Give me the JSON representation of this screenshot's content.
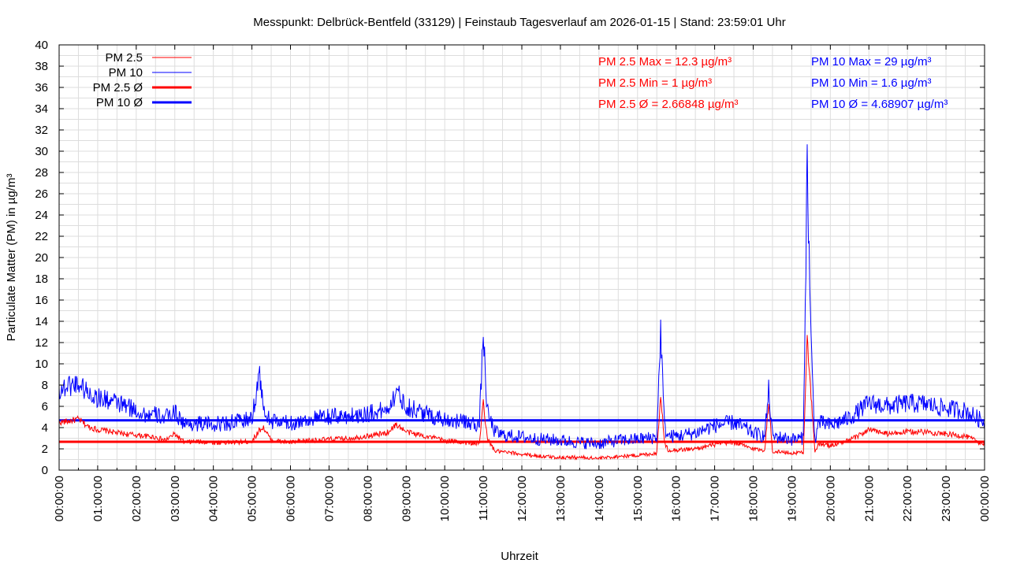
{
  "chart_data": {
    "type": "line",
    "title": "Messpunkt: Delbrück-Bentfeld (33129) | Feinstaub Tagesverlauf am 2026-01-15 | Stand: 23:59:01 Uhr",
    "xlabel": "Uhrzeit",
    "ylabel": "Particulate Matter (PM) in µg/m³",
    "xlim": [
      "00:00:00",
      "24:00:00"
    ],
    "ylim": [
      0,
      40
    ],
    "grid": true,
    "legend": "top-left",
    "x_ticks": [
      "00:00:00",
      "01:00:00",
      "02:00:00",
      "03:00:00",
      "04:00:00",
      "05:00:00",
      "06:00:00",
      "07:00:00",
      "08:00:00",
      "09:00:00",
      "10:00:00",
      "11:00:00",
      "12:00:00",
      "13:00:00",
      "14:00:00",
      "15:00:00",
      "16:00:00",
      "17:00:00",
      "18:00:00",
      "19:00:00",
      "20:00:00",
      "21:00:00",
      "22:00:00",
      "23:00:00",
      "00:00:00"
    ],
    "y_ticks": [
      0,
      2,
      4,
      6,
      8,
      10,
      12,
      14,
      16,
      18,
      20,
      22,
      24,
      26,
      28,
      30,
      32,
      34,
      36,
      38,
      40
    ],
    "x_unit": "hours",
    "series": [
      {
        "name": "PM 2.5",
        "color": "#ff0000",
        "x": [
          0,
          0.25,
          0.5,
          0.75,
          1,
          1.25,
          1.5,
          1.75,
          2,
          2.25,
          2.5,
          2.75,
          3,
          3.25,
          3.5,
          4,
          4.5,
          5,
          5.2,
          5.3,
          5.5,
          6,
          6.5,
          7,
          7.5,
          8,
          8.5,
          8.75,
          9,
          9.5,
          10,
          10.5,
          10.9,
          11,
          11.1,
          11.3,
          11.5,
          12,
          12.5,
          13,
          13.5,
          14,
          14.5,
          15,
          15.5,
          15.6,
          15.7,
          15.8,
          16,
          16.5,
          17,
          17.5,
          18,
          18.3,
          18.4,
          18.5,
          19,
          19.3,
          19.4,
          19.5,
          19.6,
          19.7,
          20,
          20.5,
          21,
          21.5,
          22,
          22.5,
          23,
          23.5,
          24
        ],
        "y": [
          4.5,
          4.6,
          4.8,
          4.1,
          3.8,
          3.7,
          3.5,
          3.4,
          3.3,
          3.2,
          3.1,
          2.8,
          3.4,
          2.6,
          2.7,
          2.6,
          2.6,
          2.7,
          3.8,
          4.0,
          2.8,
          2.6,
          2.8,
          2.9,
          3.0,
          3.2,
          3.5,
          4.3,
          3.6,
          3.2,
          2.8,
          2.6,
          2.5,
          6.5,
          3.0,
          1.8,
          1.7,
          1.5,
          1.3,
          1.2,
          1.2,
          1.1,
          1.3,
          1.4,
          1.6,
          7.2,
          2.5,
          1.9,
          1.9,
          2.0,
          2.4,
          2.6,
          2.0,
          1.9,
          6.4,
          1.8,
          1.6,
          1.7,
          12.3,
          7.0,
          1.6,
          2.5,
          2.3,
          2.8,
          3.8,
          3.4,
          3.6,
          3.6,
          3.4,
          3.2,
          2.4
        ]
      },
      {
        "name": "PM 10",
        "color": "#0000ff",
        "x": [
          0,
          0.25,
          0.5,
          0.75,
          1,
          1.25,
          1.5,
          1.75,
          2,
          2.25,
          2.5,
          2.75,
          3,
          3.25,
          3.5,
          4,
          4.5,
          5,
          5.2,
          5.3,
          5.5,
          6,
          6.5,
          7,
          7.5,
          8,
          8.5,
          8.75,
          9,
          9.5,
          10,
          10.5,
          10.9,
          11,
          11.1,
          11.3,
          11.5,
          12,
          12.5,
          13,
          13.5,
          14,
          14.5,
          15,
          15.5,
          15.6,
          15.7,
          15.8,
          16,
          16.5,
          17,
          17.5,
          18,
          18.3,
          18.4,
          18.5,
          19,
          19.3,
          19.4,
          19.5,
          19.6,
          19.7,
          20,
          20.5,
          21,
          21.5,
          22,
          22.5,
          23,
          23.5,
          24
        ],
        "y": [
          7.5,
          8.0,
          8.2,
          7.3,
          6.8,
          6.6,
          6.3,
          6.0,
          5.6,
          5.2,
          5.2,
          4.9,
          5.5,
          4.3,
          4.4,
          4.3,
          4.5,
          4.8,
          9.2,
          5.5,
          4.6,
          4.4,
          4.8,
          5.0,
          5.1,
          5.3,
          5.7,
          7.4,
          6.0,
          5.3,
          4.8,
          4.5,
          4.3,
          13.0,
          5.5,
          3.6,
          3.3,
          3.1,
          2.9,
          2.8,
          2.6,
          2.5,
          2.8,
          2.9,
          3.1,
          13.3,
          4.0,
          3.2,
          3.2,
          3.5,
          4.2,
          4.5,
          3.5,
          3.2,
          7.5,
          3.2,
          2.9,
          3.0,
          29.0,
          12.0,
          2.8,
          4.5,
          4.2,
          4.9,
          6.3,
          6.0,
          6.3,
          6.2,
          5.8,
          5.6,
          4.5
        ]
      },
      {
        "name": "PM 2.5 Ø",
        "color": "#ff0000",
        "value": 2.66848
      },
      {
        "name": "PM 10 Ø",
        "color": "#0000ff",
        "value": 4.68907
      }
    ],
    "annotations": [
      {
        "text": "PM 2.5 Max = 12.3 µg/m³",
        "color": "#ff0000"
      },
      {
        "text": "PM 2.5 Min = 1 µg/m³",
        "color": "#ff0000"
      },
      {
        "text": "PM 2.5 Ø = 2.66848 µg/m³",
        "color": "#ff0000"
      },
      {
        "text": "PM 10 Max = 29 µg/m³",
        "color": "#0000ff"
      },
      {
        "text": "PM 10 Min = 1.6 µg/m³",
        "color": "#0000ff"
      },
      {
        "text": "PM 10 Ø = 4.68907 µg/m³",
        "color": "#0000ff"
      }
    ]
  }
}
